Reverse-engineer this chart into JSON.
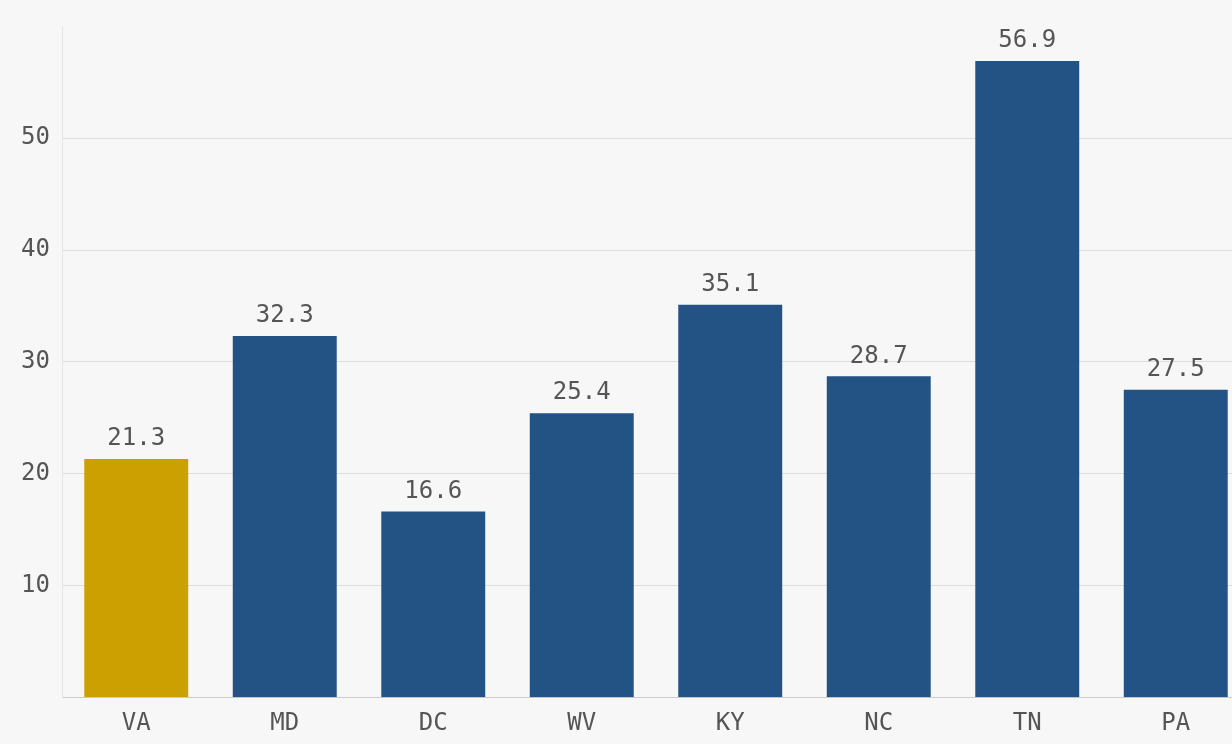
{
  "chart_data": {
    "type": "bar",
    "categories": [
      "VA",
      "MD",
      "DC",
      "WV",
      "KY",
      "NC",
      "TN",
      "PA"
    ],
    "values": [
      21.3,
      32.3,
      16.6,
      25.4,
      35.1,
      28.7,
      56.9,
      27.5
    ],
    "colors": [
      "#cca000",
      "#235284",
      "#235284",
      "#235284",
      "#235284",
      "#235284",
      "#235284",
      "#235284"
    ],
    "ylim": [
      0,
      60
    ],
    "yticks": [
      10,
      20,
      30,
      40,
      50
    ],
    "grid": "y",
    "data_labels": true,
    "legend": false
  }
}
